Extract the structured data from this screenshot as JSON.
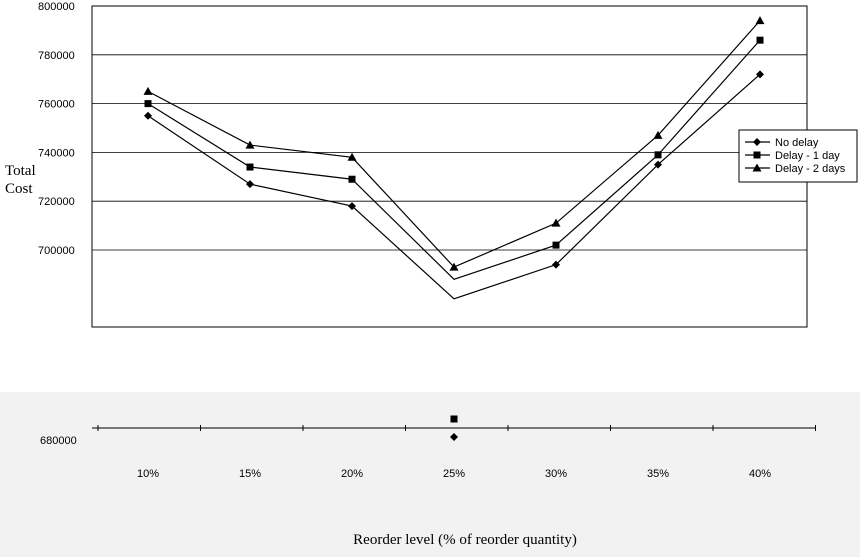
{
  "chart_data": {
    "type": "line",
    "ylabel_lines": [
      "Total",
      "Cost"
    ],
    "xlabel": "Reorder level (% of reorder quantity)",
    "categories": [
      "10%",
      "15%",
      "20%",
      "25%",
      "30%",
      "35%",
      "40%"
    ],
    "y_ticks": [
      "800000",
      "780000",
      "760000",
      "740000",
      "720000",
      "700000"
    ],
    "y_bottom_tick": "680000",
    "ylim": [
      680000,
      800000
    ],
    "grid": "horizontal",
    "legend_position": "right",
    "point_x": [
      10,
      15,
      20,
      25,
      30,
      35,
      40
    ],
    "series": [
      {
        "name": "No delay",
        "marker": "diamond",
        "values": [
          755000,
          727000,
          718000,
          680000,
          694000,
          735000,
          772000
        ],
        "stray_marker_value": 680000
      },
      {
        "name": "Delay - 1 day",
        "marker": "square",
        "values": [
          760000,
          734000,
          729000,
          688000,
          702000,
          739000,
          786000
        ],
        "stray_marker_value": 688000
      },
      {
        "name": "Delay - 2 days",
        "marker": "triangle",
        "values": [
          765000,
          743000,
          738000,
          693000,
          711000,
          747000,
          794000
        ]
      }
    ]
  }
}
